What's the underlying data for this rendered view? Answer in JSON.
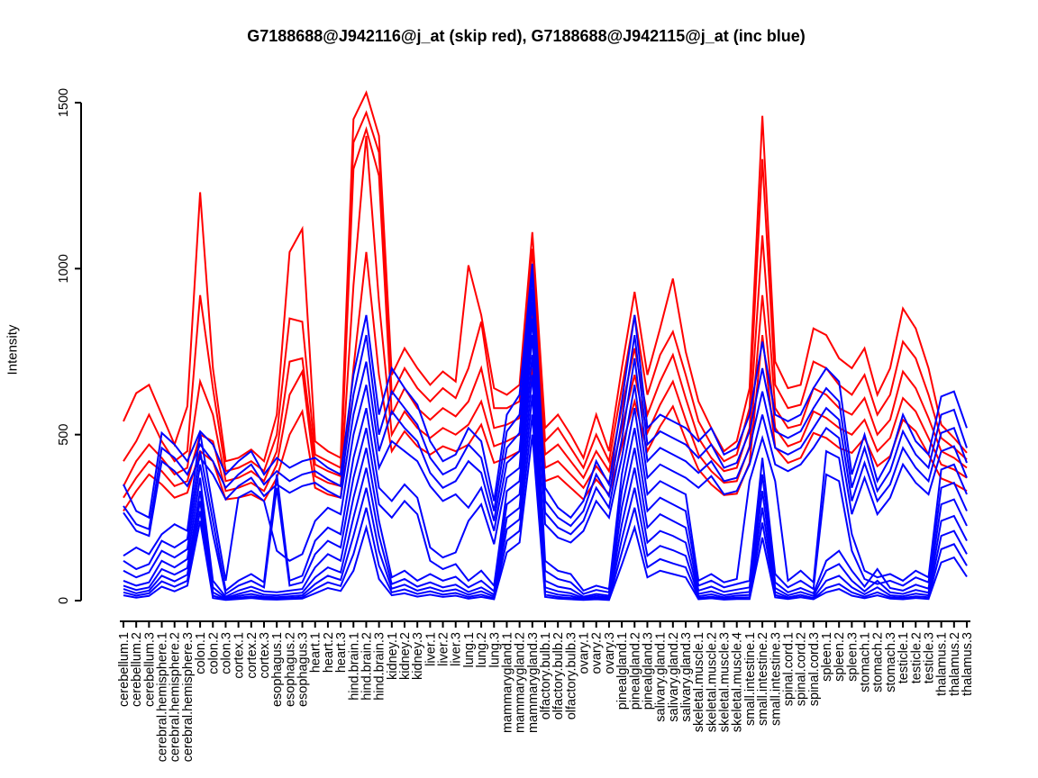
{
  "window": {
    "background": "#ffffff"
  },
  "chart_data": {
    "type": "line",
    "title": "G7188688@J942116@j_at (skip red), G7188688@J942115@j_at (inc blue)",
    "xlabel": "",
    "ylabel": "Intensity",
    "ylim": [
      0,
      1500
    ],
    "yticks": [
      0,
      500,
      1000,
      1500
    ],
    "grid": false,
    "legend_position": "none (series colors described in title)",
    "x_tick_label_rotation_deg": 90,
    "colors": {
      "skip_series": "#FF0000",
      "inc_series": "#0000FF",
      "axis": "#000000"
    },
    "line_width": 2,
    "categories": [
      "cerebellum.1",
      "cerebellum.2",
      "cerebellum.3",
      "cerebral.hemisphere.1",
      "cerebral.hemisphere.2",
      "cerebral.hemisphere.3",
      "colon.1",
      "colon.2",
      "colon.3",
      "cortex.1",
      "cortex.2",
      "cortex.3",
      "esophagus.1",
      "esophagus.2",
      "esophagus.3",
      "heart.1",
      "heart.2",
      "heart.3",
      "hind.brain.1",
      "hind.brain.2",
      "hind.brain.3",
      "kidney.1",
      "kidney.2",
      "kidney.3",
      "liver.1",
      "liver.2",
      "liver.3",
      "lung.1",
      "lung.2",
      "lung.3",
      "mammarygland.1",
      "mammarygland.2",
      "mammarygland.3",
      "olfactory.bulb.1",
      "olfactory.bulb.2",
      "olfactory.bulb.3",
      "ovary.1",
      "ovary.2",
      "ovary.3",
      "pinealgland.1",
      "pinealgland.2",
      "pinealgland.3",
      "salivary.gland.1",
      "salivary.gland.2",
      "salivary.gland.3",
      "skeletal.muscle.1",
      "skeletal.muscle.2",
      "skeletal.muscle.3",
      "skeletal.muscle.4",
      "small.intestine.1",
      "small.intestine.2",
      "small.intestine.3",
      "spinal.cord.1",
      "spinal.cord.2",
      "spinal.cord.3",
      "spleen.1",
      "spleen.2",
      "spleen.3",
      "stomach.1",
      "stomach.2",
      "stomach.3",
      "testicle.1",
      "testicle.2",
      "testicle.3",
      "thalamus.1",
      "thalamus.2",
      "thalamus.3"
    ],
    "series": [
      {
        "name": "G7188688@J942116@j_at skip line 1",
        "color": "#FF0000",
        "values": [
          540,
          625,
          650,
          560,
          470,
          585,
          1230,
          700,
          420,
          430,
          455,
          420,
          560,
          1050,
          1120,
          480,
          450,
          430,
          1450,
          1530,
          1400,
          680,
          760,
          700,
          650,
          690,
          660,
          1010,
          860,
          640,
          620,
          650,
          1110,
          520,
          560,
          500,
          430,
          560,
          450,
          700,
          930,
          680,
          820,
          970,
          750,
          600,
          520,
          450,
          480,
          640,
          1460,
          720,
          640,
          650,
          820,
          800,
          730,
          700,
          760,
          620,
          700,
          880,
          820,
          700,
          530,
          490,
          445
        ]
      },
      {
        "name": "G7188688@J942116@j_at skip line 2",
        "color": "#FF0000",
        "values": [
          420,
          480,
          560,
          480,
          420,
          450,
          920,
          640,
          390,
          400,
          420,
          390,
          500,
          850,
          840,
          440,
          420,
          400,
          1380,
          1470,
          1350,
          620,
          700,
          640,
          600,
          640,
          610,
          700,
          840,
          580,
          580,
          600,
          1060,
          480,
          520,
          460,
          400,
          500,
          420,
          640,
          860,
          620,
          740,
          810,
          680,
          540,
          470,
          420,
          440,
          580,
          1330,
          650,
          580,
          590,
          720,
          700,
          650,
          620,
          680,
          560,
          620,
          780,
          730,
          620,
          490,
          460,
          425
        ]
      },
      {
        "name": "G7188688@J942116@j_at skip line 3",
        "color": "#FF0000",
        "values": [
          345,
          420,
          470,
          430,
          380,
          400,
          660,
          560,
          360,
          370,
          390,
          360,
          450,
          720,
          730,
          410,
          390,
          375,
          1300,
          1420,
          1280,
          560,
          640,
          580,
          545,
          580,
          555,
          600,
          700,
          520,
          530,
          550,
          1010,
          440,
          470,
          420,
          370,
          450,
          390,
          580,
          760,
          560,
          660,
          740,
          610,
          490,
          430,
          390,
          400,
          520,
          1100,
          580,
          520,
          530,
          640,
          620,
          580,
          560,
          610,
          500,
          545,
          690,
          640,
          550,
          450,
          430,
          400
        ]
      },
      {
        "name": "G7188688@J942116@j_at skip line 4",
        "color": "#FF0000",
        "values": [
          310,
          370,
          420,
          390,
          345,
          360,
          500,
          480,
          330,
          340,
          355,
          330,
          410,
          620,
          690,
          375,
          355,
          345,
          950,
          1400,
          900,
          500,
          570,
          520,
          490,
          520,
          500,
          530,
          600,
          465,
          480,
          500,
          870,
          400,
          420,
          380,
          340,
          405,
          355,
          520,
          680,
          505,
          590,
          660,
          545,
          440,
          390,
          355,
          360,
          465,
          920,
          520,
          465,
          480,
          570,
          550,
          520,
          500,
          545,
          450,
          490,
          610,
          570,
          490,
          410,
          395,
          370
        ]
      },
      {
        "name": "G7188688@J942116@j_at skip line 5",
        "color": "#FF0000",
        "values": [
          270,
          330,
          380,
          350,
          310,
          325,
          450,
          420,
          305,
          310,
          320,
          300,
          370,
          500,
          570,
          340,
          320,
          310,
          700,
          1050,
          680,
          450,
          510,
          465,
          440,
          465,
          450,
          470,
          530,
          415,
          430,
          450,
          700,
          360,
          375,
          340,
          305,
          365,
          320,
          465,
          600,
          450,
          525,
          585,
          485,
          395,
          350,
          318,
          322,
          415,
          800,
          462,
          415,
          430,
          505,
          490,
          460,
          445,
          490,
          405,
          435,
          545,
          510,
          440,
          368,
          352,
          330
        ]
      },
      {
        "name": "G7188688@J942115@j_at inc line 1",
        "color": "#0000FF",
        "values": [
          350,
          270,
          250,
          505,
          470,
          420,
          510,
          470,
          380,
          420,
          450,
          380,
          430,
          400,
          420,
          430,
          400,
          380,
          680,
          860,
          560,
          700,
          640,
          590,
          480,
          420,
          440,
          520,
          480,
          300,
          560,
          620,
          1015,
          340,
          280,
          250,
          300,
          420,
          350,
          600,
          860,
          520,
          560,
          540,
          520,
          480,
          520,
          440,
          460,
          560,
          780,
          560,
          540,
          560,
          640,
          700,
          660,
          380,
          500,
          360,
          430,
          560,
          480,
          440,
          615,
          630,
          520
        ]
      },
      {
        "name": "G7188688@J942115@j_at inc line 2",
        "color": "#0000FF",
        "values": [
          285,
          230,
          215,
          460,
          430,
          380,
          470,
          420,
          340,
          380,
          410,
          350,
          390,
          360,
          380,
          390,
          365,
          345,
          620,
          800,
          500,
          630,
          580,
          530,
          430,
          380,
          400,
          470,
          430,
          270,
          510,
          560,
          980,
          300,
          250,
          225,
          270,
          380,
          315,
          540,
          800,
          470,
          510,
          490,
          470,
          430,
          470,
          400,
          415,
          510,
          700,
          510,
          490,
          510,
          580,
          640,
          600,
          340,
          460,
          330,
          390,
          510,
          440,
          400,
          560,
          575,
          460
        ]
      },
      {
        "name": "G7188688@J942115@j_at inc line 3",
        "color": "#0000FF",
        "values": [
          265,
          210,
          195,
          420,
          390,
          345,
          430,
          380,
          305,
          345,
          370,
          315,
          350,
          325,
          345,
          355,
          330,
          310,
          560,
          720,
          450,
          570,
          520,
          480,
          385,
          340,
          360,
          420,
          385,
          240,
          460,
          505,
          940,
          265,
          220,
          200,
          240,
          340,
          280,
          485,
          730,
          420,
          460,
          440,
          420,
          385,
          420,
          360,
          370,
          460,
          630,
          460,
          440,
          460,
          520,
          580,
          545,
          300,
          415,
          300,
          350,
          460,
          400,
          360,
          505,
          520,
          415
        ]
      },
      {
        "name": "G7188688@J942115@j_at inc line 4",
        "color": "#0000FF",
        "values": [
          135,
          160,
          140,
          200,
          230,
          210,
          505,
          280,
          60,
          310,
          330,
          300,
          150,
          120,
          140,
          240,
          280,
          260,
          500,
          650,
          400,
          480,
          450,
          420,
          345,
          300,
          320,
          280,
          340,
          210,
          415,
          450,
          900,
          230,
          190,
          175,
          210,
          300,
          250,
          430,
          650,
          370,
          410,
          390,
          370,
          340,
          375,
          320,
          330,
          410,
          560,
          410,
          390,
          410,
          460,
          520,
          490,
          260,
          370,
          260,
          310,
          410,
          355,
          320,
          450,
          465,
          370
        ]
      },
      {
        "name": "G7188688@J942115@j_at inc line 5",
        "color": "#0000FF",
        "values": [
          120,
          95,
          110,
          180,
          160,
          185,
          450,
          240,
          30,
          60,
          80,
          55,
          380,
          60,
          75,
          180,
          220,
          200,
          430,
          580,
          340,
          300,
          350,
          310,
          160,
          130,
          145,
          240,
          290,
          170,
          370,
          400,
          850,
          120,
          90,
          80,
          30,
          45,
          35,
          380,
          580,
          320,
          360,
          340,
          320,
          60,
          80,
          55,
          65,
          360,
          490,
          360,
          60,
          90,
          55,
          450,
          430,
          200,
          90,
          70,
          80,
          60,
          90,
          70,
          395,
          410,
          320
        ]
      },
      {
        "name": "G7188688@J942115@j_at inc line 6",
        "color": "#0000FF",
        "values": [
          90,
          70,
          85,
          150,
          130,
          155,
          410,
          200,
          20,
          45,
          60,
          40,
          340,
          45,
          55,
          140,
          180,
          160,
          370,
          520,
          290,
          250,
          300,
          260,
          120,
          95,
          110,
          60,
          90,
          45,
          330,
          360,
          800,
          90,
          65,
          55,
          20,
          32,
          25,
          330,
          520,
          270,
          310,
          290,
          270,
          45,
          60,
          40,
          50,
          60,
          430,
          80,
          40,
          60,
          35,
          380,
          360,
          150,
          65,
          50,
          60,
          45,
          70,
          55,
          340,
          355,
          270
        ]
      },
      {
        "name": "G7188688@J942115@j_at inc line 7",
        "color": "#0000FF",
        "values": [
          60,
          45,
          55,
          120,
          100,
          125,
          370,
          60,
          12,
          30,
          42,
          28,
          25,
          30,
          35,
          100,
          140,
          120,
          310,
          460,
          240,
          70,
          90,
          60,
          80,
          60,
          72,
          40,
          60,
          28,
          290,
          320,
          740,
          60,
          42,
          35,
          12,
          20,
          15,
          280,
          460,
          220,
          260,
          240,
          220,
          30,
          42,
          26,
          33,
          40,
          380,
          55,
          25,
          38,
          22,
          120,
          150,
          90,
          42,
          95,
          38,
          30,
          48,
          36,
          290,
          305,
          225
        ]
      },
      {
        "name": "G7188688@J942115@j_at inc line 8",
        "color": "#0000FF",
        "values": [
          45,
          32,
          40,
          95,
          78,
          98,
          330,
          40,
          8,
          20,
          30,
          18,
          16,
          20,
          24,
          70,
          100,
          85,
          250,
          400,
          195,
          50,
          65,
          42,
          55,
          40,
          48,
          26,
          40,
          18,
          250,
          280,
          680,
          40,
          28,
          22,
          8,
          14,
          10,
          230,
          400,
          175,
          210,
          195,
          175,
          20,
          28,
          16,
          22,
          26,
          330,
          38,
          16,
          26,
          14,
          90,
          110,
          60,
          28,
          60,
          25,
          20,
          32,
          24,
          240,
          255,
          180
        ]
      },
      {
        "name": "G7188688@J942115@j_at inc line 9",
        "color": "#0000FF",
        "values": [
          35,
          22,
          30,
          75,
          58,
          78,
          300,
          25,
          5,
          14,
          20,
          12,
          10,
          13,
          16,
          50,
          75,
          62,
          195,
          340,
          150,
          36,
          48,
          30,
          40,
          28,
          34,
          18,
          28,
          12,
          215,
          245,
          620,
          28,
          18,
          14,
          5,
          9,
          7,
          185,
          340,
          135,
          165,
          152,
          135,
          13,
          19,
          10,
          15,
          17,
          280,
          26,
          10,
          17,
          8,
          60,
          75,
          40,
          19,
          40,
          16,
          13,
          21,
          16,
          195,
          210,
          140
        ]
      },
      {
        "name": "G7188688@J942115@j_at inc line 10",
        "color": "#0000FF",
        "values": [
          25,
          15,
          22,
          58,
          42,
          60,
          270,
          15,
          3,
          9,
          13,
          8,
          6,
          8,
          10,
          35,
          55,
          44,
          140,
          280,
          105,
          25,
          34,
          20,
          28,
          18,
          23,
          11,
          18,
          7,
          180,
          210,
          560,
          18,
          11,
          8,
          3,
          6,
          4,
          145,
          280,
          100,
          125,
          112,
          100,
          8,
          12,
          6,
          9,
          10,
          235,
          17,
          6,
          11,
          5,
          38,
          50,
          25,
          12,
          25,
          10,
          8,
          13,
          10,
          155,
          170,
          105
        ]
      },
      {
        "name": "G7188688@J942115@j_at inc line 11",
        "color": "#0000FF",
        "values": [
          16,
          9,
          14,
          42,
          28,
          45,
          240,
          8,
          2,
          5,
          8,
          4,
          3,
          5,
          6,
          22,
          38,
          29,
          90,
          220,
          65,
          16,
          22,
          12,
          18,
          11,
          15,
          6,
          11,
          4,
          145,
          175,
          500,
          11,
          6,
          4,
          2,
          4,
          2,
          108,
          220,
          70,
          90,
          80,
          70,
          4,
          7,
          3,
          5,
          5,
          190,
          10,
          5,
          10,
          4,
          25,
          35,
          15,
          7,
          16,
          6,
          4,
          8,
          5,
          115,
          130,
          72
        ]
      }
    ]
  }
}
